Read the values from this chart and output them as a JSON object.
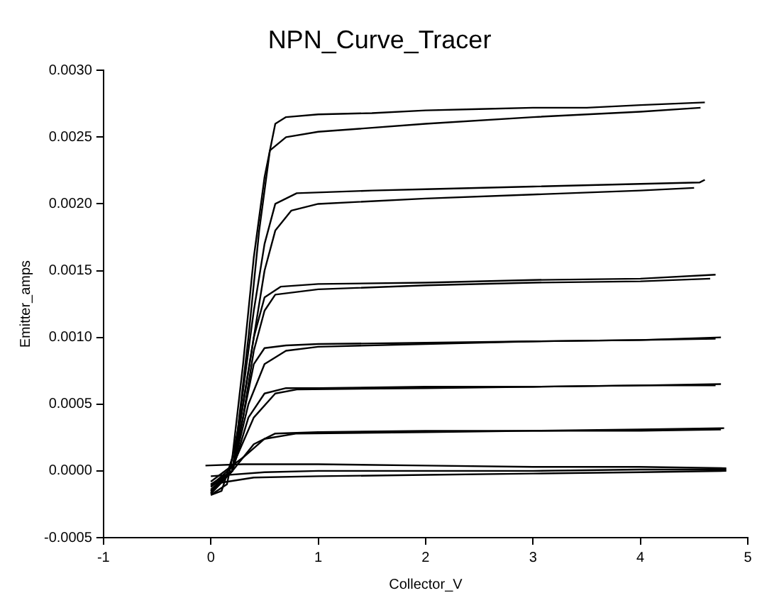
{
  "chart_data": {
    "type": "line",
    "title": "NPN_Curve_Tracer",
    "xlabel": "Collector_V",
    "ylabel": "Emitter_amps",
    "xlim": [
      -1,
      5
    ],
    "xticks": [
      -1,
      0,
      1,
      2,
      3,
      4,
      5
    ],
    "ylim": [
      -0.0005,
      0.003
    ],
    "yticks": [
      {
        "value": -0.0005,
        "label": "-0.0005"
      },
      {
        "value": 0,
        "label": "0.0000"
      },
      {
        "value": 0.0005,
        "label": "0.0005"
      },
      {
        "value": 0.001,
        "label": "0.0010"
      },
      {
        "value": 0.0015,
        "label": "0.0015"
      },
      {
        "value": 0.002,
        "label": "0.0020"
      },
      {
        "value": 0.0025,
        "label": "0.0025"
      },
      {
        "value": 0.003,
        "label": "0.0030"
      }
    ],
    "grid": false,
    "legend": false,
    "marker": "none",
    "line_style": "solid",
    "series": [
      {
        "color": "#000000",
        "x": [
          0,
          0.1,
          0.2,
          0.3,
          0.4,
          0.5,
          0.6,
          0.7,
          1,
          1.5,
          2,
          2.5,
          3,
          3.5,
          4,
          4.6
        ],
        "values": [
          -0.00018,
          -0.00015,
          0.0001,
          0.0008,
          0.0016,
          0.0022,
          0.0026,
          0.00265,
          0.00267,
          0.00268,
          0.0027,
          0.00271,
          0.00272,
          0.00272,
          0.00274,
          0.00276
        ]
      },
      {
        "color": "#000000",
        "x": [
          0,
          0.15,
          0.25,
          0.35,
          0.45,
          0.55,
          0.7,
          1,
          2,
          3,
          4,
          4.56
        ],
        "values": [
          -0.00018,
          -0.0001,
          0.0003,
          0.001,
          0.0018,
          0.0024,
          0.0025,
          0.00254,
          0.0026,
          0.00265,
          0.00269,
          0.00272
        ]
      },
      {
        "color": "#000000",
        "x": [
          0,
          0.2,
          0.3,
          0.4,
          0.5,
          0.6,
          0.8,
          1.5,
          2,
          3,
          4,
          4.55,
          4.6
        ],
        "values": [
          -0.00017,
          0,
          0.0006,
          0.0012,
          0.0017,
          0.002,
          0.00208,
          0.0021,
          0.00211,
          0.00213,
          0.00215,
          0.00216,
          0.00218
        ]
      },
      {
        "color": "#000000",
        "x": [
          0,
          0.2,
          0.3,
          0.4,
          0.5,
          0.6,
          0.75,
          1,
          2,
          3,
          4,
          4.5
        ],
        "values": [
          -0.00017,
          0,
          0.0005,
          0.001,
          0.0015,
          0.0018,
          0.00195,
          0.002,
          0.00204,
          0.00207,
          0.0021,
          0.00212
        ]
      },
      {
        "color": "#000000",
        "x": [
          0,
          0.2,
          0.3,
          0.4,
          0.5,
          0.65,
          1,
          2,
          3,
          4,
          4.7
        ],
        "values": [
          -0.00016,
          0,
          0.0005,
          0.001,
          0.0013,
          0.00138,
          0.0014,
          0.00141,
          0.00143,
          0.00144,
          0.00147
        ]
      },
      {
        "color": "#000000",
        "x": [
          0,
          0.2,
          0.3,
          0.4,
          0.5,
          0.6,
          1,
          2,
          3,
          4,
          4.65
        ],
        "values": [
          -0.00015,
          0,
          0.0004,
          0.0009,
          0.0012,
          0.00132,
          0.00136,
          0.00139,
          0.00141,
          0.00142,
          0.00144
        ]
      },
      {
        "color": "#000000",
        "x": [
          0,
          0.2,
          0.3,
          0.4,
          0.5,
          0.7,
          1,
          2,
          3,
          4,
          4.75
        ],
        "values": [
          -0.00015,
          0,
          0.0004,
          0.0008,
          0.00092,
          0.00094,
          0.00095,
          0.00096,
          0.00097,
          0.00098,
          0.001
        ]
      },
      {
        "color": "#000000",
        "x": [
          0,
          0.2,
          0.35,
          0.5,
          0.7,
          1,
          2,
          3,
          4,
          4.7
        ],
        "values": [
          -0.00014,
          0,
          0.0005,
          0.0008,
          0.0009,
          0.00093,
          0.00095,
          0.00097,
          0.00098,
          0.00099
        ]
      },
      {
        "color": "#000000",
        "x": [
          0,
          0.2,
          0.35,
          0.5,
          0.7,
          1,
          2,
          3,
          4,
          4.75
        ],
        "values": [
          -0.00012,
          0,
          0.0004,
          0.00058,
          0.00062,
          0.00062,
          0.00063,
          0.00063,
          0.00064,
          0.00065
        ]
      },
      {
        "color": "#000000",
        "x": [
          0,
          0.2,
          0.4,
          0.6,
          0.8,
          2,
          3,
          4,
          4.7
        ],
        "values": [
          -0.00011,
          3e-05,
          0.0004,
          0.00058,
          0.00061,
          0.00062,
          0.00063,
          0.00064,
          0.00064
        ]
      },
      {
        "color": "#000000",
        "x": [
          0,
          0.2,
          0.4,
          0.6,
          1,
          2,
          3,
          4,
          4.78
        ],
        "values": [
          -0.0001,
          0,
          0.0002,
          0.00028,
          0.00029,
          0.0003,
          0.0003,
          0.00031,
          0.00032
        ]
      },
      {
        "color": "#000000",
        "x": [
          0,
          0.3,
          0.5,
          0.8,
          2,
          3,
          4,
          4.75
        ],
        "values": [
          -8e-05,
          0.0001,
          0.00024,
          0.00028,
          0.00029,
          0.0003,
          0.0003,
          0.00031
        ]
      },
      {
        "color": "#000000",
        "x": [
          -0.05,
          0.3,
          1,
          2,
          3,
          4,
          4.8
        ],
        "values": [
          4e-05,
          5e-05,
          5e-05,
          4e-05,
          3e-05,
          3e-05,
          2e-05
        ]
      },
      {
        "color": "#000000",
        "x": [
          0,
          0.5,
          1,
          2,
          3,
          4,
          4.8
        ],
        "values": [
          -4e-05,
          -1e-05,
          0,
          0,
          0,
          1e-05,
          1e-05
        ]
      },
      {
        "color": "#000000",
        "x": [
          0,
          0.4,
          1,
          2,
          3,
          4,
          4.8
        ],
        "values": [
          -0.0001,
          -5e-05,
          -4e-05,
          -3e-05,
          -2e-05,
          -1e-05,
          0
        ]
      }
    ]
  }
}
